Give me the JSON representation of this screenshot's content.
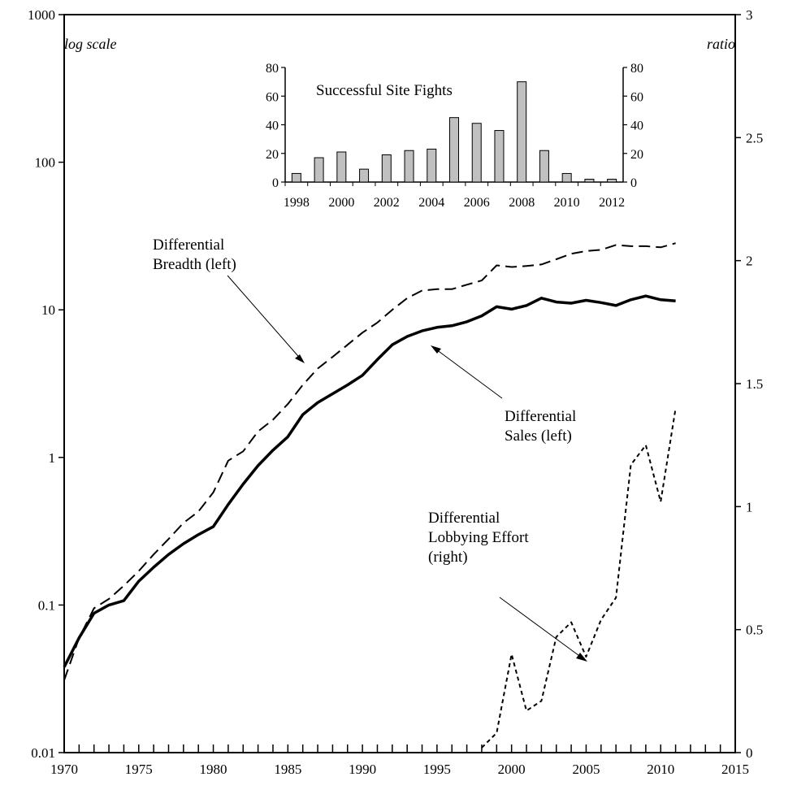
{
  "chart_data": [
    {
      "type": "line",
      "x_axis": {
        "range": [
          1970,
          2015
        ],
        "ticks": [
          1970,
          1975,
          1980,
          1985,
          1990,
          1995,
          2000,
          2005,
          2010,
          2015
        ],
        "tick_labels": [
          "1970",
          "1975",
          "1980",
          "1985",
          "1990",
          "1995",
          "2000",
          "2005",
          "2010",
          "2015"
        ]
      },
      "y_left": {
        "scale": "log",
        "range": [
          0.01,
          1000
        ],
        "ticks": [
          0.01,
          0.1,
          1,
          10,
          100,
          1000
        ],
        "tick_labels": [
          "0.01",
          "0.1",
          "1",
          "10",
          "100",
          "1000"
        ],
        "note": "log scale"
      },
      "y_right": {
        "scale": "linear",
        "range": [
          0,
          3
        ],
        "ticks": [
          0,
          0.5,
          1,
          1.5,
          2,
          2.5,
          3
        ],
        "tick_labels": [
          "0",
          "0.5",
          "1",
          "1.5",
          "2",
          "2.5",
          "3"
        ],
        "note": "ratio"
      },
      "grid": false,
      "series": [
        {
          "axis": "left",
          "style": "solid",
          "x": [
            1970,
            1971,
            1972,
            1973,
            1974,
            1975,
            1976,
            1977,
            1978,
            1979,
            1980,
            1981,
            1982,
            1983,
            1984,
            1985,
            1986,
            1987,
            1988,
            1989,
            1990,
            1991,
            1992,
            1993,
            1994,
            1995,
            1996,
            1997,
            1998,
            1999,
            2000,
            2001,
            2002,
            2003,
            2004,
            2005,
            2006,
            2007,
            2008,
            2009,
            2010,
            2011
          ],
          "values": [
            0.038,
            0.06,
            0.088,
            0.1,
            0.107,
            0.145,
            0.18,
            0.22,
            0.26,
            0.3,
            0.34,
            0.48,
            0.66,
            0.88,
            1.12,
            1.38,
            1.95,
            2.35,
            2.7,
            3.1,
            3.6,
            4.6,
            5.8,
            6.6,
            7.2,
            7.6,
            7.8,
            8.3,
            9.1,
            10.5,
            10.1,
            10.7,
            12.0,
            11.3,
            11.1,
            11.6,
            11.2,
            10.7,
            11.7,
            12.4,
            11.7,
            11.5
          ]
        },
        {
          "axis": "left",
          "style": "dashed",
          "x": [
            1970,
            1971,
            1972,
            1973,
            1974,
            1975,
            1976,
            1977,
            1978,
            1979,
            1980,
            1981,
            1982,
            1983,
            1984,
            1985,
            1986,
            1987,
            1988,
            1989,
            1990,
            1991,
            1992,
            1993,
            1994,
            1995,
            1996,
            1997,
            1998,
            1999,
            2000,
            2001,
            2002,
            2003,
            2004,
            2005,
            2006,
            2007,
            2008,
            2009,
            2010,
            2011
          ],
          "values": [
            0.031,
            0.06,
            0.095,
            0.11,
            0.135,
            0.17,
            0.22,
            0.28,
            0.36,
            0.43,
            0.58,
            0.95,
            1.1,
            1.5,
            1.8,
            2.3,
            3.1,
            4.0,
            4.8,
            5.8,
            7.0,
            8.2,
            10.0,
            12.0,
            13.5,
            13.8,
            13.8,
            14.8,
            15.8,
            20.0,
            19.5,
            19.8,
            20.3,
            22.0,
            24.0,
            25.0,
            25.5,
            27.5,
            27.0,
            27.0,
            26.5,
            28.3
          ]
        },
        {
          "axis": "right",
          "style": "dotted",
          "x": [
            1998,
            1999,
            2000,
            2001,
            2002,
            2003,
            2004,
            2005,
            2006,
            2007,
            2008,
            2009,
            2010,
            2011
          ],
          "values": [
            0.02,
            0.08,
            0.4,
            0.17,
            0.21,
            0.47,
            0.53,
            0.39,
            0.54,
            0.63,
            1.17,
            1.25,
            1.02,
            1.4
          ]
        }
      ],
      "annotations": [
        {
          "lines": [
            "Differential",
            "Breadth (left)"
          ]
        },
        {
          "lines": [
            "Differential",
            "Sales (left)"
          ]
        },
        {
          "lines": [
            "Differential",
            "Lobbying Effort",
            "(right)"
          ]
        }
      ]
    },
    {
      "type": "bar",
      "title": "Successful Site Fights",
      "categories": [
        "1998",
        "1999",
        "2000",
        "2001",
        "2002",
        "2003",
        "2004",
        "2005",
        "2006",
        "2007",
        "2008",
        "2009",
        "2010",
        "2011",
        "2012"
      ],
      "values": [
        6,
        17,
        21,
        9,
        19,
        22,
        23,
        45,
        41,
        36,
        70,
        22,
        6,
        2,
        2
      ],
      "x_tick_labels": [
        "1998",
        "2000",
        "2002",
        "2004",
        "2006",
        "2008",
        "2010",
        "2012"
      ],
      "y_axis": {
        "range": [
          0,
          80
        ],
        "ticks": [
          0,
          20,
          40,
          60,
          80
        ],
        "tick_labels": [
          "0",
          "20",
          "40",
          "60",
          "80"
        ]
      },
      "right_axis_ticks": [
        "0",
        "20",
        "40",
        "60",
        "80"
      ],
      "bar_color": "#c0c0c0",
      "grid": false
    }
  ]
}
